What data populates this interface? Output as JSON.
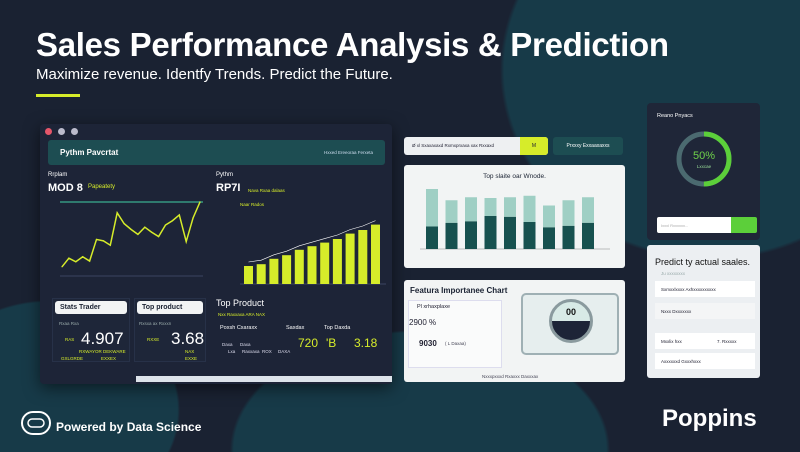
{
  "hero": {
    "title": "Sales Performance Analysis & Prediction",
    "subtitle": "Maximize revenue. Identfy Trends. Predict the Future."
  },
  "colors": {
    "background": "#1a2232",
    "accent": "#d6ec2a",
    "teal": "#1d4d52",
    "green": "#5ccf3a"
  },
  "dashboard": {
    "header_title": "Pythm Pavcrtat",
    "header_right": "Hxxed Ereeoraa Ferxeta",
    "left_chart": {
      "label": "Rrplam",
      "value": "MOD 8",
      "tag": "Papeatety"
    },
    "right_chart": {
      "label": "Pythm",
      "value": "RP7I",
      "tag": "Nava Rxaa dalaas",
      "inner": "Naar Rados"
    },
    "stats_trader": {
      "title": "Stats Trader",
      "label": "Rxaa Rxa",
      "value": "4.907",
      "small": "RAS",
      "foot1": "RXWAYOR DEKWARE",
      "foot2": "GXLGRDE",
      "foot3": "EXXEX"
    },
    "top_product_card": {
      "title": "Top product",
      "label": "Rxsxa ax Rxxxn",
      "value": "3.68",
      "small": "RXXE",
      "foot1": "NAX",
      "foot2": "EXXE"
    },
    "top_product": {
      "title": "Top Product",
      "tag": "Nxx Raxxaxa ARA NAX",
      "col1": "Poxsh Cxaraxx",
      "col2": "Saxdax",
      "col3": "Top Daxda",
      "v1": "720",
      "v2": "'B",
      "v3": "3.18",
      "cells": [
        "Daxa",
        "Daxa",
        "Lxa",
        "Raxxaxa",
        "ROX",
        "DAXA"
      ]
    }
  },
  "toolbar": {
    "search_text": "Ø xl Sxaxaxaxd Rxmxprxaxa xax Rxxaxd",
    "search_btn": "M",
    "action_btn": "Prxxxy Exxaaxaxxs"
  },
  "stacked_chart": {
    "title": "Top slaite oar Wnode."
  },
  "feature_chart": {
    "title": "Featura Importanee Chart",
    "row1": "Pl xrhaxplaxe",
    "val1": "2900 %",
    "val2": "9030",
    "val2_suffix": "( L Daxaa)",
    "gauge": "00",
    "footer": "Nxxxpxxxd Rxaxxx Daxxxax"
  },
  "ring": {
    "title": "Reano Pnyacs",
    "percent": "50%",
    "percent_value": 0.5,
    "caption": "Lxxcae",
    "input_placeholder": "Ixxxl Rxxxxxx..."
  },
  "predict": {
    "title": "Predict ty actual saales.",
    "sub": "Ju xxxxxxxx",
    "rows": [
      "Sxmxxlxxxx Axhxxxxxxxxxx",
      "Nxxx Dxxxxxxx",
      "Mxxlix hxx",
      "Axxxxxxd Gxxxhxxx"
    ],
    "row3_value": "7. Rxxxxx"
  },
  "footer": {
    "powered": "Powered by Data Science",
    "brand": "Poppins"
  },
  "chart_data": [
    {
      "type": "line",
      "values": [
        10,
        22,
        17,
        24,
        18,
        48,
        46,
        40,
        85,
        70,
        62,
        55,
        65,
        58,
        52,
        68,
        74,
        82,
        45,
        78,
        100
      ]
    },
    {
      "type": "bar",
      "values": [
        20,
        22,
        28,
        32,
        38,
        42,
        46,
        50,
        56,
        60,
        66
      ]
    },
    {
      "type": "bar",
      "series": [
        {
          "values": [
            30,
            35,
            37,
            44,
            43,
            36,
            29,
            31,
            35
          ]
        },
        {
          "values": [
            50,
            30,
            32,
            24,
            26,
            35,
            29,
            34,
            34
          ]
        }
      ]
    }
  ]
}
